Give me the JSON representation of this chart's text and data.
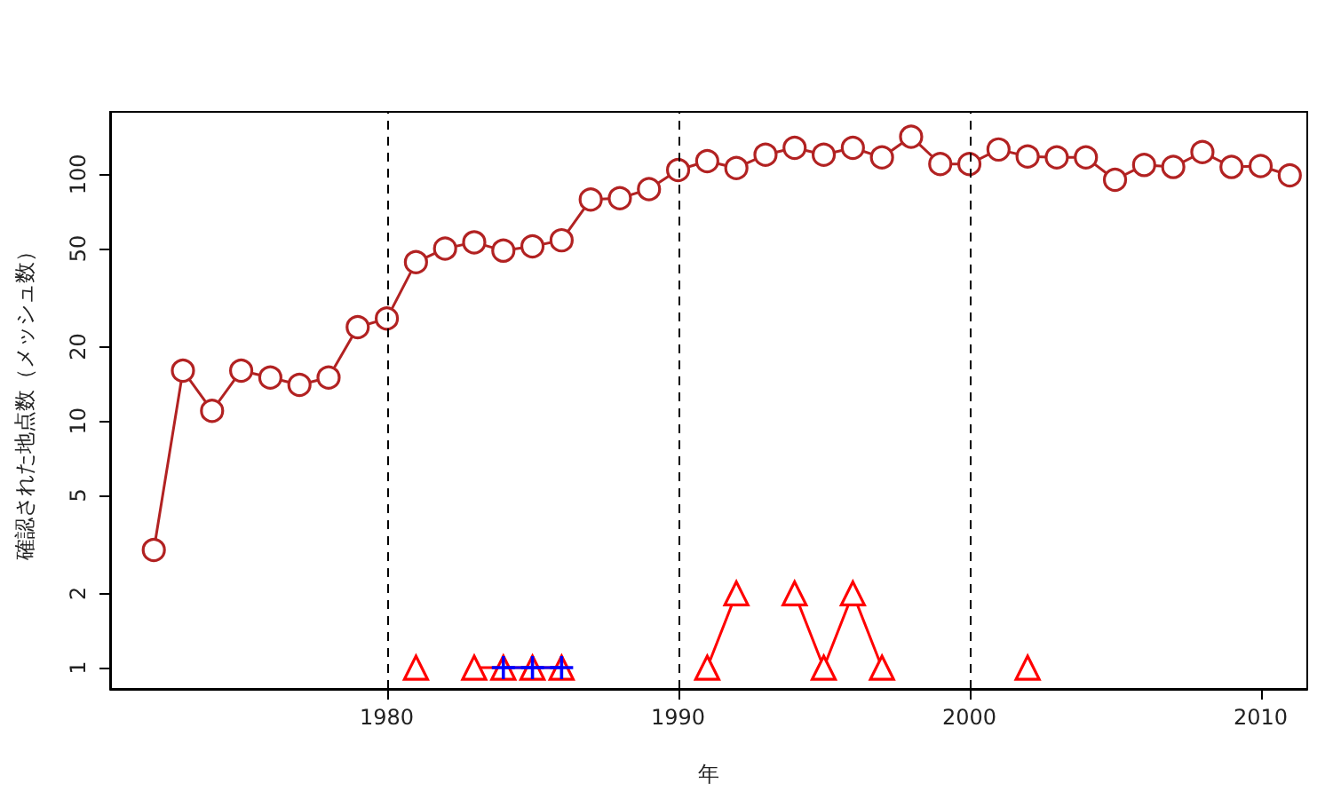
{
  "chart_data": {
    "type": "line",
    "xlabel": "年",
    "ylabel": "確認された地点数（メッシュ数）",
    "log": "y",
    "xlim": [
      1970.5,
      2011.6
    ],
    "xticks": [
      1980,
      1990,
      2000,
      2010
    ],
    "ylim": [
      0.82,
      179
    ],
    "yticks": [
      1,
      2,
      5,
      10,
      20,
      50,
      100
    ],
    "series": [
      {
        "color": "#b22222",
        "marker": "circle",
        "x": [
          1972,
          1973,
          1974,
          1975,
          1976,
          1977,
          1978,
          1979,
          1980,
          1981,
          1982,
          1983,
          1984,
          1985,
          1986,
          1987,
          1988,
          1989,
          1990,
          1991,
          1992,
          1993,
          1994,
          1995,
          1996,
          1997,
          1998,
          1999,
          2000,
          2001,
          2002,
          2003,
          2004,
          2005,
          2006,
          2007,
          2008,
          2009,
          2010,
          2011
        ],
        "values": [
          3,
          16,
          11,
          16,
          15,
          14,
          15,
          24,
          26,
          44,
          50,
          53,
          49,
          51,
          54,
          79,
          80,
          87,
          104,
          113,
          106,
          120,
          128,
          120,
          128,
          117,
          142,
          110,
          110,
          126,
          118,
          117,
          117,
          95,
          109,
          107,
          123,
          107,
          108,
          99
        ]
      },
      {
        "color": "#ff0000",
        "marker": "triangle",
        "x": [
          1981,
          1982,
          1983,
          1984,
          1985,
          1986,
          1987,
          1988,
          1989,
          1990,
          1991,
          1992,
          1993,
          1994,
          1995,
          1996,
          1997,
          1998,
          1999,
          2000,
          2001,
          2002
        ],
        "values": [
          1,
          null,
          1,
          1,
          1,
          1,
          null,
          null,
          null,
          null,
          1,
          2,
          null,
          2,
          1,
          2,
          1,
          null,
          null,
          null,
          null,
          1
        ]
      },
      {
        "color": "#0000ff",
        "marker": "cross",
        "x": [
          1984,
          1985,
          1986
        ],
        "values": [
          1,
          1,
          1
        ]
      }
    ],
    "ref_lines": [
      {
        "axis": "x",
        "value": 1980,
        "color": "#000000",
        "line_style": "dashed"
      },
      {
        "axis": "x",
        "value": 1990,
        "color": "#000000",
        "line_style": "dashed"
      },
      {
        "axis": "x",
        "value": 2000,
        "color": "#000000",
        "line_style": "dashed"
      }
    ]
  }
}
